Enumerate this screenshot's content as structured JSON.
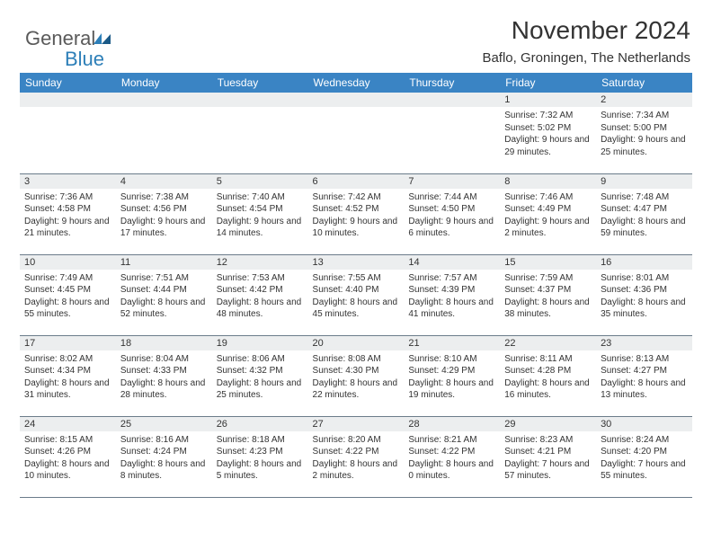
{
  "brand": {
    "name_part1": "General",
    "name_part2": "Blue",
    "accent_color": "#2d7fb8"
  },
  "title": "November 2024",
  "location": "Baflo, Groningen, The Netherlands",
  "colors": {
    "header_bg": "#3a84c4",
    "header_fg": "#ffffff",
    "daybar_bg": "#eceeef",
    "border": "#6b7c8a",
    "text": "#333333"
  },
  "day_names": [
    "Sunday",
    "Monday",
    "Tuesday",
    "Wednesday",
    "Thursday",
    "Friday",
    "Saturday"
  ],
  "weeks": [
    [
      {
        "n": "",
        "sr": "",
        "ss": "",
        "dl": ""
      },
      {
        "n": "",
        "sr": "",
        "ss": "",
        "dl": ""
      },
      {
        "n": "",
        "sr": "",
        "ss": "",
        "dl": ""
      },
      {
        "n": "",
        "sr": "",
        "ss": "",
        "dl": ""
      },
      {
        "n": "",
        "sr": "",
        "ss": "",
        "dl": ""
      },
      {
        "n": "1",
        "sr": "Sunrise: 7:32 AM",
        "ss": "Sunset: 5:02 PM",
        "dl": "Daylight: 9 hours and 29 minutes."
      },
      {
        "n": "2",
        "sr": "Sunrise: 7:34 AM",
        "ss": "Sunset: 5:00 PM",
        "dl": "Daylight: 9 hours and 25 minutes."
      }
    ],
    [
      {
        "n": "3",
        "sr": "Sunrise: 7:36 AM",
        "ss": "Sunset: 4:58 PM",
        "dl": "Daylight: 9 hours and 21 minutes."
      },
      {
        "n": "4",
        "sr": "Sunrise: 7:38 AM",
        "ss": "Sunset: 4:56 PM",
        "dl": "Daylight: 9 hours and 17 minutes."
      },
      {
        "n": "5",
        "sr": "Sunrise: 7:40 AM",
        "ss": "Sunset: 4:54 PM",
        "dl": "Daylight: 9 hours and 14 minutes."
      },
      {
        "n": "6",
        "sr": "Sunrise: 7:42 AM",
        "ss": "Sunset: 4:52 PM",
        "dl": "Daylight: 9 hours and 10 minutes."
      },
      {
        "n": "7",
        "sr": "Sunrise: 7:44 AM",
        "ss": "Sunset: 4:50 PM",
        "dl": "Daylight: 9 hours and 6 minutes."
      },
      {
        "n": "8",
        "sr": "Sunrise: 7:46 AM",
        "ss": "Sunset: 4:49 PM",
        "dl": "Daylight: 9 hours and 2 minutes."
      },
      {
        "n": "9",
        "sr": "Sunrise: 7:48 AM",
        "ss": "Sunset: 4:47 PM",
        "dl": "Daylight: 8 hours and 59 minutes."
      }
    ],
    [
      {
        "n": "10",
        "sr": "Sunrise: 7:49 AM",
        "ss": "Sunset: 4:45 PM",
        "dl": "Daylight: 8 hours and 55 minutes."
      },
      {
        "n": "11",
        "sr": "Sunrise: 7:51 AM",
        "ss": "Sunset: 4:44 PM",
        "dl": "Daylight: 8 hours and 52 minutes."
      },
      {
        "n": "12",
        "sr": "Sunrise: 7:53 AM",
        "ss": "Sunset: 4:42 PM",
        "dl": "Daylight: 8 hours and 48 minutes."
      },
      {
        "n": "13",
        "sr": "Sunrise: 7:55 AM",
        "ss": "Sunset: 4:40 PM",
        "dl": "Daylight: 8 hours and 45 minutes."
      },
      {
        "n": "14",
        "sr": "Sunrise: 7:57 AM",
        "ss": "Sunset: 4:39 PM",
        "dl": "Daylight: 8 hours and 41 minutes."
      },
      {
        "n": "15",
        "sr": "Sunrise: 7:59 AM",
        "ss": "Sunset: 4:37 PM",
        "dl": "Daylight: 8 hours and 38 minutes."
      },
      {
        "n": "16",
        "sr": "Sunrise: 8:01 AM",
        "ss": "Sunset: 4:36 PM",
        "dl": "Daylight: 8 hours and 35 minutes."
      }
    ],
    [
      {
        "n": "17",
        "sr": "Sunrise: 8:02 AM",
        "ss": "Sunset: 4:34 PM",
        "dl": "Daylight: 8 hours and 31 minutes."
      },
      {
        "n": "18",
        "sr": "Sunrise: 8:04 AM",
        "ss": "Sunset: 4:33 PM",
        "dl": "Daylight: 8 hours and 28 minutes."
      },
      {
        "n": "19",
        "sr": "Sunrise: 8:06 AM",
        "ss": "Sunset: 4:32 PM",
        "dl": "Daylight: 8 hours and 25 minutes."
      },
      {
        "n": "20",
        "sr": "Sunrise: 8:08 AM",
        "ss": "Sunset: 4:30 PM",
        "dl": "Daylight: 8 hours and 22 minutes."
      },
      {
        "n": "21",
        "sr": "Sunrise: 8:10 AM",
        "ss": "Sunset: 4:29 PM",
        "dl": "Daylight: 8 hours and 19 minutes."
      },
      {
        "n": "22",
        "sr": "Sunrise: 8:11 AM",
        "ss": "Sunset: 4:28 PM",
        "dl": "Daylight: 8 hours and 16 minutes."
      },
      {
        "n": "23",
        "sr": "Sunrise: 8:13 AM",
        "ss": "Sunset: 4:27 PM",
        "dl": "Daylight: 8 hours and 13 minutes."
      }
    ],
    [
      {
        "n": "24",
        "sr": "Sunrise: 8:15 AM",
        "ss": "Sunset: 4:26 PM",
        "dl": "Daylight: 8 hours and 10 minutes."
      },
      {
        "n": "25",
        "sr": "Sunrise: 8:16 AM",
        "ss": "Sunset: 4:24 PM",
        "dl": "Daylight: 8 hours and 8 minutes."
      },
      {
        "n": "26",
        "sr": "Sunrise: 8:18 AM",
        "ss": "Sunset: 4:23 PM",
        "dl": "Daylight: 8 hours and 5 minutes."
      },
      {
        "n": "27",
        "sr": "Sunrise: 8:20 AM",
        "ss": "Sunset: 4:22 PM",
        "dl": "Daylight: 8 hours and 2 minutes."
      },
      {
        "n": "28",
        "sr": "Sunrise: 8:21 AM",
        "ss": "Sunset: 4:22 PM",
        "dl": "Daylight: 8 hours and 0 minutes."
      },
      {
        "n": "29",
        "sr": "Sunrise: 8:23 AM",
        "ss": "Sunset: 4:21 PM",
        "dl": "Daylight: 7 hours and 57 minutes."
      },
      {
        "n": "30",
        "sr": "Sunrise: 8:24 AM",
        "ss": "Sunset: 4:20 PM",
        "dl": "Daylight: 7 hours and 55 minutes."
      }
    ]
  ]
}
